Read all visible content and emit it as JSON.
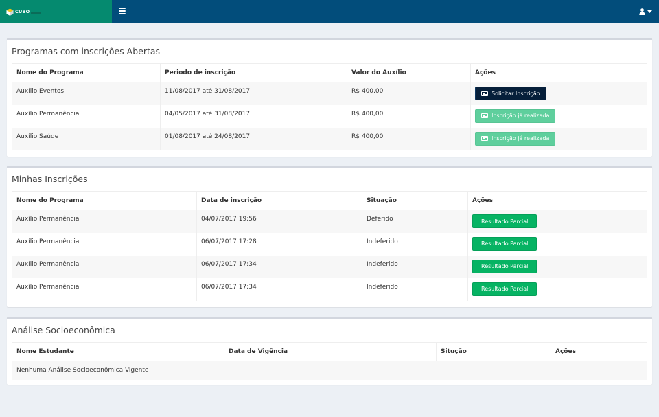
{
  "header": {
    "logo_text": "CUBO",
    "logo_icon": "cube-icon",
    "menu_icon": "hamburger-icon",
    "user_icon": "user-icon",
    "caret_icon": "caret-down-icon"
  },
  "colors": {
    "header": "#024d7b",
    "logo_bg": "#058a6f",
    "btn_dark": "#061f3a",
    "btn_light": "#5fcf9d",
    "btn_green": "#06b363"
  },
  "open_programs": {
    "title": "Programas com inscrições Abertas",
    "columns": [
      "Nome do Programa",
      "Periodo de inscrição",
      "Valor do Auxílio",
      "Ações"
    ],
    "rows": [
      {
        "name": "Auxílio Eventos",
        "period": "11/08/2017 até 31/08/2017",
        "value": "R$ 400,00",
        "action": "Solicitar Inscrição"
      },
      {
        "name": "Auxílio Permanência",
        "period": "04/05/2017 até 31/08/2017",
        "value": "R$ 400,00",
        "action": "Inscrição já realizada"
      },
      {
        "name": "Auxílio Saúde",
        "period": "01/08/2017 até 24/08/2017",
        "value": "R$ 400,00",
        "action": "Inscrição já realizada"
      }
    ]
  },
  "my_subscriptions": {
    "title": "Minhas Inscrições",
    "columns": [
      "Nome do Programa",
      "Data de inscrição",
      "Situação",
      "Ações"
    ],
    "rows": [
      {
        "name": "Auxílio Permanência",
        "date": "04/07/2017 19:56",
        "status": "Deferido",
        "action": "Resultado Parcial"
      },
      {
        "name": "Auxílio Permanência",
        "date": "06/07/2017 17:28",
        "status": "Indeferido",
        "action": "Resultado Parcial"
      },
      {
        "name": "Auxílio Permanência",
        "date": "06/07/2017 17:34",
        "status": "Indeferido",
        "action": "Resultado Parcial"
      },
      {
        "name": "Auxílio Permanência",
        "date": "06/07/2017 17:34",
        "status": "Indeferido",
        "action": "Resultado Parcial"
      }
    ]
  },
  "socio": {
    "title": "Análise Socioeconômica",
    "columns": [
      "Nome Estudante",
      "Data de Vigência",
      "Situção",
      "Ações"
    ],
    "empty_message": "Nenhuma Análise Socioeconômica Vigente"
  }
}
